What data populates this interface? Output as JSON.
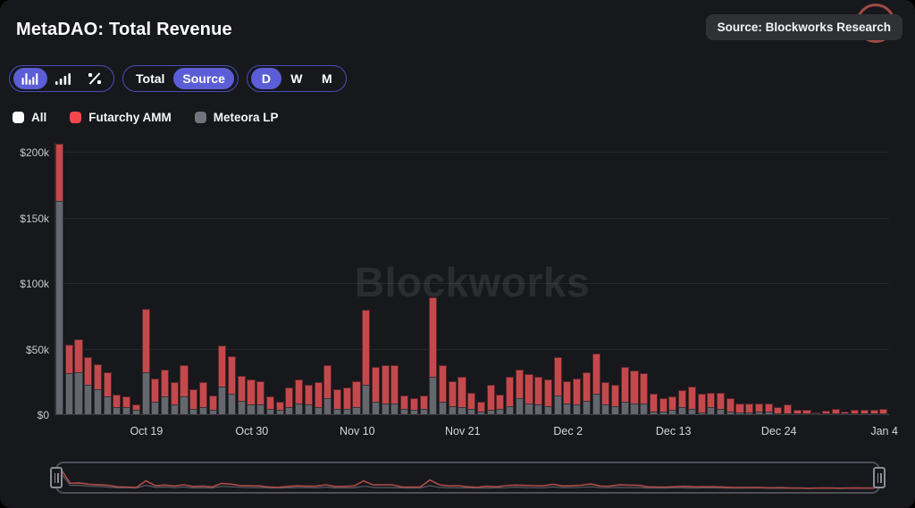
{
  "header": {
    "title": "MetaDAO: Total Revenue",
    "source_badge": "Source: Blockworks Research"
  },
  "toolbar": {
    "chart_type": {
      "options": [
        "stacked-bars-icon",
        "ascending-bars-icon",
        "percent-icon"
      ],
      "selected": "stacked-bars-icon"
    },
    "mode": {
      "options": [
        "Total",
        "Source"
      ],
      "selected": "Source"
    },
    "interval": {
      "options": [
        "D",
        "W",
        "M"
      ],
      "selected": "D"
    }
  },
  "legend": {
    "items": [
      {
        "label": "All",
        "color": "#ffffff"
      },
      {
        "label": "Futarchy AMM",
        "color": "#f4484d"
      },
      {
        "label": "Meteora LP",
        "color": "#71747a"
      }
    ]
  },
  "watermark": "Blockworks",
  "colors": {
    "background": "#17181c",
    "accent_purple": "#5b5ed6",
    "futarchy_bar": "#c4494d",
    "meteora_bar": "#64676d",
    "sparkline_red": "#ad4b49",
    "sparkline_gray": "#565a60"
  },
  "chart_data": {
    "type": "bar",
    "stacked": true,
    "title": "MetaDAO: Total Revenue",
    "unit": "USD thousands per day",
    "ylim": [
      0,
      210
    ],
    "grid": true,
    "legend_position": "top-left",
    "ytick_labels": [
      "$0",
      "$50k",
      "$100k",
      "$150k",
      "$200k"
    ],
    "xtick_labels": [
      "Oct 19",
      "Oct 30",
      "Nov 10",
      "Nov 21",
      "Dec 2",
      "Dec 13",
      "Dec 24",
      "Jan 4"
    ],
    "xtick_indices": [
      9,
      20,
      31,
      42,
      53,
      64,
      75,
      86
    ],
    "x": [
      "Oct 10",
      "Oct 11",
      "Oct 12",
      "Oct 13",
      "Oct 14",
      "Oct 15",
      "Oct 16",
      "Oct 17",
      "Oct 18",
      "Oct 19",
      "Oct 20",
      "Oct 21",
      "Oct 22",
      "Oct 23",
      "Oct 24",
      "Oct 25",
      "Oct 26",
      "Oct 27",
      "Oct 28",
      "Oct 29",
      "Oct 30",
      "Oct 31",
      "Nov 1",
      "Nov 2",
      "Nov 3",
      "Nov 4",
      "Nov 5",
      "Nov 6",
      "Nov 7",
      "Nov 8",
      "Nov 9",
      "Nov 10",
      "Nov 11",
      "Nov 12",
      "Nov 13",
      "Nov 14",
      "Nov 15",
      "Nov 16",
      "Nov 17",
      "Nov 18",
      "Nov 19",
      "Nov 20",
      "Nov 21",
      "Nov 22",
      "Nov 23",
      "Nov 24",
      "Nov 25",
      "Nov 26",
      "Nov 27",
      "Nov 28",
      "Nov 29",
      "Nov 30",
      "Dec 1",
      "Dec 2",
      "Dec 3",
      "Dec 4",
      "Dec 5",
      "Dec 6",
      "Dec 7",
      "Dec 8",
      "Dec 9",
      "Dec 10",
      "Dec 11",
      "Dec 12",
      "Dec 13",
      "Dec 14",
      "Dec 15",
      "Dec 16",
      "Dec 17",
      "Dec 18",
      "Dec 19",
      "Dec 20",
      "Dec 21",
      "Dec 22",
      "Dec 23",
      "Dec 24",
      "Dec 25",
      "Dec 26",
      "Dec 27",
      "Dec 28",
      "Dec 29",
      "Dec 30",
      "Dec 31",
      "Jan 1",
      "Jan 2",
      "Jan 3",
      "Jan 4"
    ],
    "series": [
      {
        "name": "Meteora LP",
        "color": "#64676d",
        "values": [
          163,
          32,
          33,
          23,
          20,
          14,
          6,
          6,
          4,
          33,
          10,
          14,
          8,
          14,
          5,
          6,
          4,
          22,
          16,
          11,
          8,
          8,
          5,
          4,
          6,
          9,
          8,
          6,
          13,
          5,
          5,
          6,
          23,
          10,
          9,
          9,
          5,
          4,
          5,
          29,
          10,
          7,
          6,
          5,
          3,
          4,
          5,
          7,
          13,
          9,
          8,
          7,
          15,
          9,
          8,
          11,
          16,
          8,
          7,
          10,
          9,
          9,
          3,
          3,
          4,
          6,
          5,
          2,
          6,
          5,
          3,
          2,
          2,
          3,
          3,
          1,
          1,
          1,
          0.5,
          0.3,
          0.5,
          0.5,
          0.4,
          0.5,
          0.5,
          0.5,
          0.7
        ]
      },
      {
        "name": "Futarchy AMM",
        "color": "#c4494d",
        "values": [
          44,
          22,
          25,
          21,
          19,
          19,
          10,
          8,
          4,
          48,
          18,
          21,
          17,
          24,
          15,
          19,
          11,
          31,
          29,
          19,
          19,
          18,
          9,
          6,
          15,
          18,
          15,
          19,
          25,
          15,
          16,
          20,
          57,
          27,
          29,
          29,
          10,
          9,
          10,
          61,
          28,
          19,
          23,
          12,
          7,
          19,
          11,
          22,
          22,
          22,
          21,
          20,
          29,
          17,
          20,
          22,
          31,
          17,
          16,
          27,
          25,
          23,
          13,
          10,
          10,
          13,
          17,
          14,
          11,
          12,
          10,
          7,
          7,
          6,
          6,
          5,
          7,
          3,
          2.5,
          1,
          2,
          3.5,
          1.6,
          2.5,
          3,
          2.5,
          3.5
        ]
      }
    ]
  }
}
